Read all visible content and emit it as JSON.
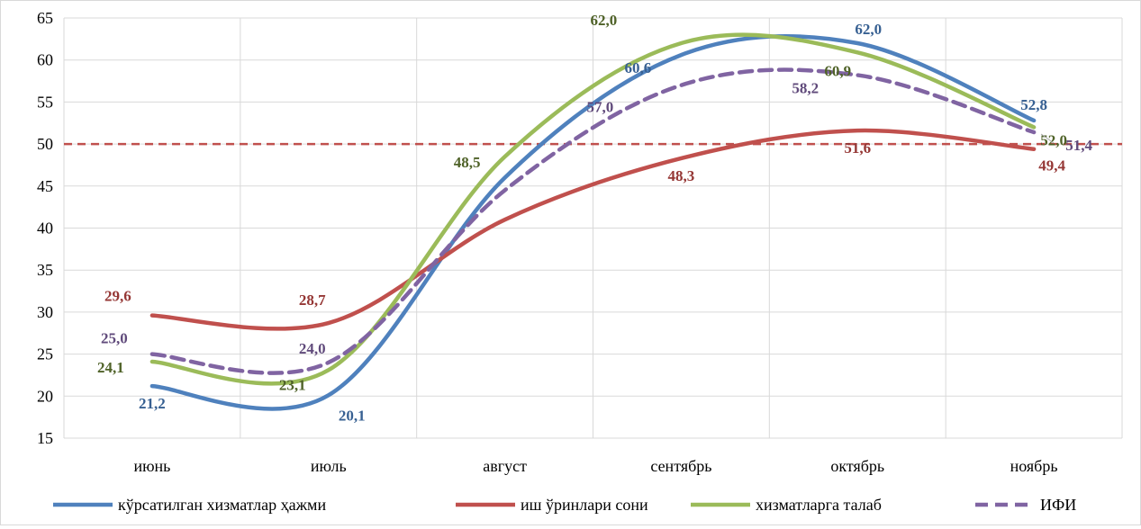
{
  "chart_data": {
    "type": "line",
    "title": "",
    "xlabel": "",
    "ylabel": "",
    "categories": [
      "июнь",
      "июль",
      "август",
      "сентябрь",
      "октябрь",
      "ноябрь"
    ],
    "ylim": [
      15,
      65
    ],
    "yticks": [
      15,
      20,
      25,
      30,
      35,
      40,
      45,
      50,
      55,
      60,
      65
    ],
    "grid": true,
    "smooth": true,
    "legend_position": "bottom",
    "reference_line": {
      "value": 50,
      "color": "#c0504d",
      "style": "dashed"
    },
    "series": [
      {
        "name": "кўрсатилган хизматлар ҳажми",
        "color": "#4f81bd",
        "dashed": false,
        "values": [
          21.2,
          20.1,
          46.0,
          60.6,
          62.0,
          52.8
        ],
        "labels": [
          "21,2",
          "20,1",
          "",
          "60,6",
          "62,0",
          "52,8"
        ]
      },
      {
        "name": "иш ўринлари сони",
        "color": "#c0504d",
        "dashed": false,
        "values": [
          29.6,
          28.7,
          41.0,
          48.3,
          51.6,
          49.4
        ],
        "labels": [
          "29,6",
          "28,7",
          "",
          "48,3",
          "51,6",
          "49,4"
        ]
      },
      {
        "name": "хизматларга талаб",
        "color": "#9bbb59",
        "dashed": false,
        "values": [
          24.1,
          23.1,
          48.5,
          62.0,
          60.9,
          52.0
        ],
        "labels": [
          "24,1",
          "23,1",
          "48,5",
          "62,0",
          "60,9",
          "52,0"
        ]
      },
      {
        "name": "ИФИ",
        "color": "#8064a2",
        "dashed": true,
        "values": [
          25.0,
          24.0,
          44.5,
          57.0,
          58.2,
          51.4
        ],
        "labels": [
          "25,0",
          "24,0",
          "",
          "57,0",
          "58,2",
          "51,4"
        ]
      }
    ]
  },
  "label_colors": {
    "кўрсатилган хизматлар ҳажми": "#376092",
    "иш ўринлари сони": "#953735",
    "хизматларга талаб": "#4f6228",
    "ИФИ": "#604a7b"
  }
}
